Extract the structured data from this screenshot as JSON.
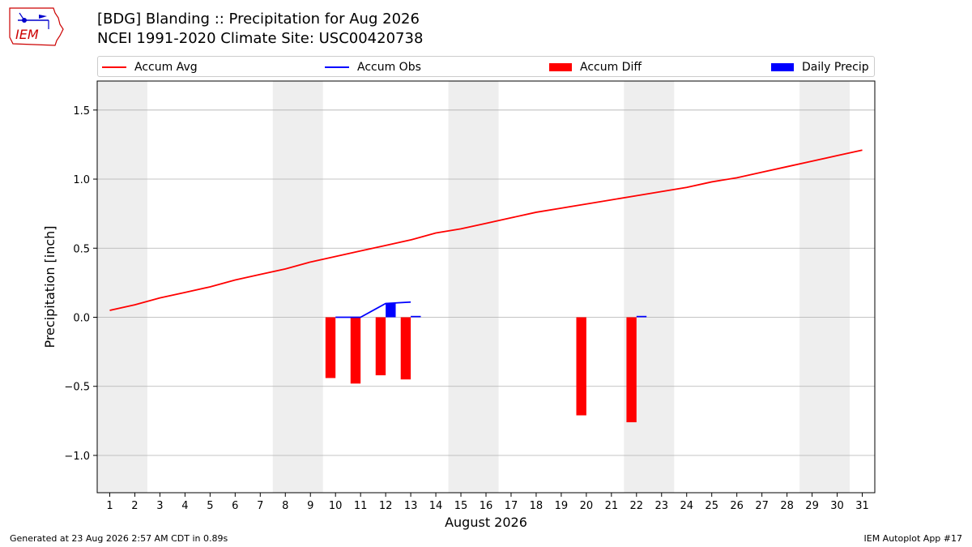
{
  "logo_text": "IEM",
  "title_line1": "[BDG] Blanding :: Precipitation for Aug 2026",
  "title_line2": "NCEI 1991-2020 Climate Site: USC00420738",
  "footer_left": "Generated at 23 Aug 2026 2:57 AM CDT in 0.89s",
  "footer_right": "IEM Autoplot App #17",
  "chart_data": {
    "type": "bar",
    "title": "[BDG] Blanding :: Precipitation for Aug 2026",
    "subtitle": "NCEI 1991-2020 Climate Site: USC00420738",
    "xlabel": "August 2026",
    "ylabel": "Precipitation [inch]",
    "x_ticks": [
      1,
      2,
      3,
      4,
      5,
      6,
      7,
      8,
      9,
      10,
      11,
      12,
      13,
      14,
      15,
      16,
      17,
      18,
      19,
      20,
      21,
      22,
      23,
      24,
      25,
      26,
      27,
      28,
      29,
      30,
      31
    ],
    "xlim": [
      0.5,
      31.5
    ],
    "ylim": [
      -1.27,
      1.71
    ],
    "y_ticks": [
      -1.0,
      -0.5,
      0.0,
      0.5,
      1.0,
      1.5
    ],
    "y_tick_labels": [
      "−1.0",
      "−0.5",
      "0.0",
      "0.5",
      "1.0",
      "1.5"
    ],
    "grid": "horizontal",
    "weekend_shading": [
      [
        1,
        2
      ],
      [
        8,
        9
      ],
      [
        15,
        16
      ],
      [
        22,
        23
      ],
      [
        29,
        30
      ]
    ],
    "legend_position": "top",
    "series": [
      {
        "name": "Accum Avg",
        "type": "line",
        "color": "#ff0000",
        "x": [
          1,
          2,
          3,
          4,
          5,
          6,
          7,
          8,
          9,
          10,
          11,
          12,
          13,
          14,
          15,
          16,
          17,
          18,
          19,
          20,
          21,
          22,
          23,
          24,
          25,
          26,
          27,
          28,
          29,
          30,
          31
        ],
        "values": [
          0.05,
          0.09,
          0.14,
          0.18,
          0.22,
          0.27,
          0.31,
          0.35,
          0.4,
          0.44,
          0.48,
          0.52,
          0.56,
          0.61,
          0.64,
          0.68,
          0.72,
          0.76,
          0.79,
          0.82,
          0.85,
          0.88,
          0.91,
          0.94,
          0.98,
          1.01,
          1.05,
          1.09,
          1.13,
          1.17,
          1.21
        ]
      },
      {
        "name": "Accum Obs",
        "type": "line",
        "color": "#0000ff",
        "x": [
          10,
          11,
          12,
          13
        ],
        "values": [
          0.0,
          0.0,
          0.1,
          0.11
        ]
      },
      {
        "name": "Accum Diff",
        "type": "bar",
        "color": "#ff0000",
        "x": [
          10,
          11,
          12,
          13,
          20,
          22
        ],
        "values": [
          -0.44,
          -0.48,
          -0.42,
          -0.45,
          -0.71,
          -0.76
        ]
      },
      {
        "name": "Daily Precip",
        "type": "bar",
        "color": "#0000ff",
        "x": [
          12,
          13,
          22
        ],
        "values": [
          0.1,
          0.01,
          0.01
        ]
      }
    ]
  }
}
